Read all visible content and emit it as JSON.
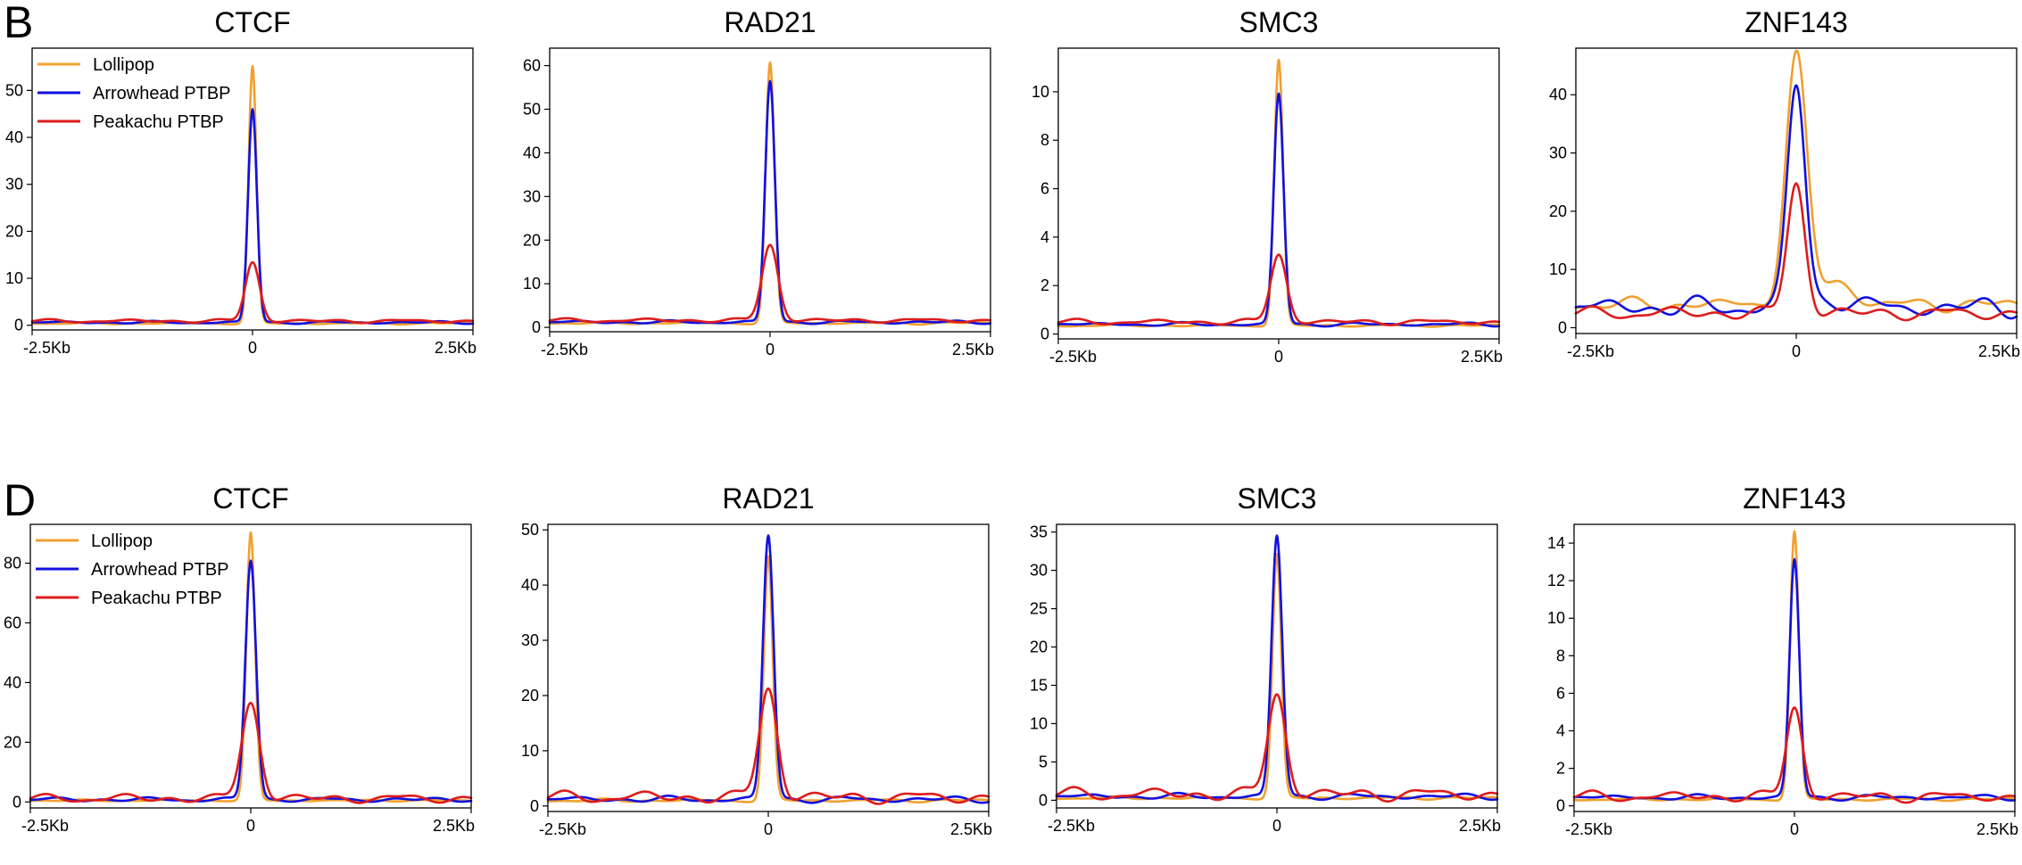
{
  "panels": [
    {
      "letter": "B"
    },
    {
      "letter": "D"
    }
  ],
  "legend": {
    "entries": [
      {
        "name": "Lollipop",
        "color": "#f0a030"
      },
      {
        "name": "Arrowhead PTBP",
        "color": "#1010e0"
      },
      {
        "name": "Peakachu PTBP",
        "color": "#dd1c1c"
      }
    ]
  },
  "chart_data": [
    {
      "type": "line",
      "panel": "B",
      "title": "CTCF",
      "xlim": [
        -2.5,
        2.5
      ],
      "ylim": [
        -1,
        59
      ],
      "x_tick_labels": [
        "-2.5Kb",
        "0",
        "2.5Kb"
      ],
      "yticks": [
        0,
        10,
        20,
        30,
        40,
        50
      ],
      "series": [
        {
          "name": "Lollipop",
          "color": "#f0a030",
          "baseline": 0.4,
          "peak": 55,
          "width": 0.045,
          "shoulder": 0,
          "noise": 0.2
        },
        {
          "name": "Arrowhead PTBP",
          "color": "#1010e0",
          "baseline": 0.6,
          "peak": 46,
          "width": 0.05,
          "shoulder": 0,
          "noise": 0.3
        },
        {
          "name": "Peakachu PTBP",
          "color": "#dd1c1c",
          "baseline": 0.9,
          "peak": 13.5,
          "width": 0.08,
          "shoulder": 0,
          "noise": 0.4
        }
      ]
    },
    {
      "type": "line",
      "panel": "B",
      "title": "RAD21",
      "xlim": [
        -2.5,
        2.5
      ],
      "ylim": [
        -1,
        64
      ],
      "x_tick_labels": [
        "-2.5Kb",
        "0",
        "2.5Kb"
      ],
      "yticks": [
        0,
        10,
        20,
        30,
        40,
        50,
        60
      ],
      "series": [
        {
          "name": "Lollipop",
          "color": "#f0a030",
          "baseline": 1,
          "peak": 60.5,
          "width": 0.05,
          "shoulder": 0,
          "noise": 0.3
        },
        {
          "name": "Arrowhead PTBP",
          "color": "#1010e0",
          "baseline": 1.2,
          "peak": 56.5,
          "width": 0.055,
          "shoulder": 0,
          "noise": 0.4
        },
        {
          "name": "Peakachu PTBP",
          "color": "#dd1c1c",
          "baseline": 1.6,
          "peak": 19,
          "width": 0.09,
          "shoulder": 0,
          "noise": 0.5
        }
      ]
    },
    {
      "type": "line",
      "panel": "B",
      "title": "SMC3",
      "xlim": [
        -2.5,
        2.5
      ],
      "ylim": [
        -0.2,
        11.8
      ],
      "x_tick_labels": [
        "-2.5Kb",
        "0",
        "2.5Kb"
      ],
      "yticks": [
        0,
        2,
        4,
        6,
        8,
        10
      ],
      "series": [
        {
          "name": "Lollipop",
          "color": "#f0a030",
          "baseline": 0.35,
          "peak": 11.3,
          "width": 0.05,
          "shoulder": 0,
          "noise": 0.05
        },
        {
          "name": "Arrowhead PTBP",
          "color": "#1010e0",
          "baseline": 0.4,
          "peak": 9.9,
          "width": 0.055,
          "shoulder": 0,
          "noise": 0.08
        },
        {
          "name": "Peakachu PTBP",
          "color": "#dd1c1c",
          "baseline": 0.5,
          "peak": 3.3,
          "width": 0.09,
          "shoulder": 0,
          "noise": 0.12
        }
      ]
    },
    {
      "type": "line",
      "panel": "B",
      "title": "ZNF143",
      "xlim": [
        -2.5,
        2.5
      ],
      "ylim": [
        -1,
        48
      ],
      "x_tick_labels": [
        "-2.5Kb",
        "0",
        "2.5Kb"
      ],
      "yticks": [
        0,
        10,
        20,
        30,
        40
      ],
      "series": [
        {
          "name": "Lollipop",
          "color": "#f0a030",
          "baseline": 4,
          "peak": 46.5,
          "width": 0.12,
          "shoulder": 4,
          "noise": 1.2
        },
        {
          "name": "Arrowhead PTBP",
          "color": "#1010e0",
          "baseline": 3.5,
          "peak": 41.5,
          "width": 0.1,
          "shoulder": 1.5,
          "noise": 1.8
        },
        {
          "name": "Peakachu PTBP",
          "color": "#dd1c1c",
          "baseline": 2.5,
          "peak": 25,
          "width": 0.1,
          "shoulder": 0,
          "noise": 1.2
        }
      ]
    },
    {
      "type": "line",
      "panel": "D",
      "title": "CTCF",
      "xlim": [
        -2.5,
        2.5
      ],
      "ylim": [
        -2,
        93
      ],
      "x_tick_labels": [
        "-2.5Kb",
        "0",
        "2.5Kb"
      ],
      "yticks": [
        0,
        20,
        40,
        60,
        80
      ],
      "series": [
        {
          "name": "Lollipop",
          "color": "#f0a030",
          "baseline": 0.5,
          "peak": 90,
          "width": 0.05,
          "shoulder": 0,
          "noise": 0.3
        },
        {
          "name": "Arrowhead PTBP",
          "color": "#1010e0",
          "baseline": 0.8,
          "peak": 81,
          "width": 0.06,
          "shoulder": 0,
          "noise": 0.8
        },
        {
          "name": "Peakachu PTBP",
          "color": "#dd1c1c",
          "baseline": 1.2,
          "peak": 33.5,
          "width": 0.1,
          "shoulder": 0,
          "noise": 1.6
        }
      ]
    },
    {
      "type": "line",
      "panel": "D",
      "title": "RAD21",
      "xlim": [
        -2.5,
        2.5
      ],
      "ylim": [
        -1,
        51
      ],
      "x_tick_labels": [
        "-2.5Kb",
        "0",
        "2.5Kb"
      ],
      "yticks": [
        0,
        10,
        20,
        30,
        40,
        50
      ],
      "series": [
        {
          "name": "Lollipop",
          "color": "#f0a030",
          "baseline": 1,
          "peak": 45,
          "width": 0.05,
          "shoulder": 0,
          "noise": 0.3
        },
        {
          "name": "Arrowhead PTBP",
          "color": "#1010e0",
          "baseline": 1.2,
          "peak": 49,
          "width": 0.06,
          "shoulder": 0,
          "noise": 0.6
        },
        {
          "name": "Peakachu PTBP",
          "color": "#dd1c1c",
          "baseline": 1.6,
          "peak": 21.5,
          "width": 0.1,
          "shoulder": 0,
          "noise": 1.2
        }
      ]
    },
    {
      "type": "line",
      "panel": "D",
      "title": "SMC3",
      "xlim": [
        -2.5,
        2.5
      ],
      "ylim": [
        -1,
        36
      ],
      "x_tick_labels": [
        "-2.5Kb",
        "0",
        "2.5Kb"
      ],
      "yticks": [
        0,
        5,
        10,
        15,
        20,
        25,
        30,
        35
      ],
      "series": [
        {
          "name": "Lollipop",
          "color": "#f0a030",
          "baseline": 0.3,
          "peak": 32,
          "width": 0.05,
          "shoulder": 0,
          "noise": 0.2
        },
        {
          "name": "Arrowhead PTBP",
          "color": "#1010e0",
          "baseline": 0.5,
          "peak": 34.5,
          "width": 0.06,
          "shoulder": 0,
          "noise": 0.4
        },
        {
          "name": "Peakachu PTBP",
          "color": "#dd1c1c",
          "baseline": 0.8,
          "peak": 14,
          "width": 0.1,
          "shoulder": 0,
          "noise": 0.9
        }
      ]
    },
    {
      "type": "line",
      "panel": "D",
      "title": "ZNF143",
      "xlim": [
        -2.5,
        2.5
      ],
      "ylim": [
        -0.3,
        15
      ],
      "x_tick_labels": [
        "-2.5Kb",
        "0",
        "2.5Kb"
      ],
      "yticks": [
        0,
        2,
        4,
        6,
        8,
        10,
        12,
        14
      ],
      "series": [
        {
          "name": "Lollipop",
          "color": "#f0a030",
          "baseline": 0.35,
          "peak": 14.6,
          "width": 0.05,
          "shoulder": 0,
          "noise": 0.08
        },
        {
          "name": "Arrowhead PTBP",
          "color": "#1010e0",
          "baseline": 0.45,
          "peak": 13.1,
          "width": 0.055,
          "shoulder": 0,
          "noise": 0.15
        },
        {
          "name": "Peakachu PTBP",
          "color": "#dd1c1c",
          "baseline": 0.5,
          "peak": 5.3,
          "width": 0.09,
          "shoulder": 0,
          "noise": 0.3
        }
      ]
    }
  ]
}
